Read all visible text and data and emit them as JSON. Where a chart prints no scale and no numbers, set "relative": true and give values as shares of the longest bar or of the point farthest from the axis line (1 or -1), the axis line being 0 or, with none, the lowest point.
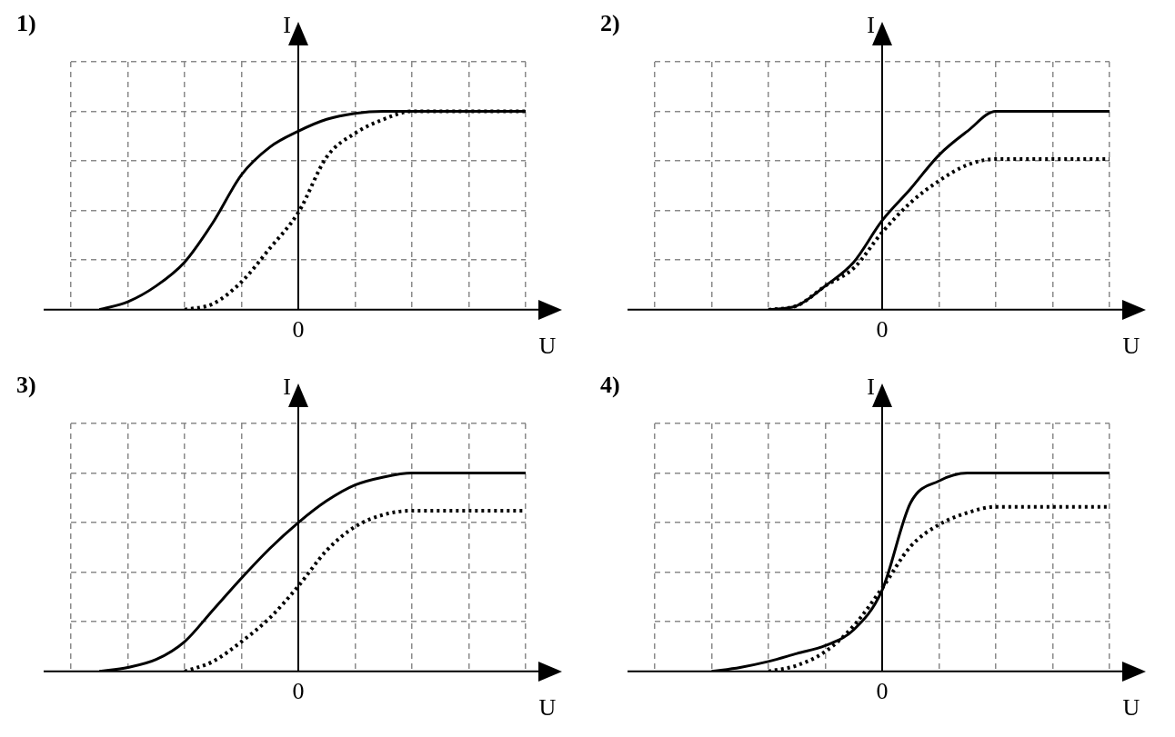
{
  "chart_data": [
    {
      "type": "line",
      "title": "1)",
      "xlabel": "U",
      "ylabel": "I",
      "relative": true,
      "grid": true,
      "legend": false,
      "marker": "none",
      "annotations": [
        "0"
      ],
      "categories": [
        null,
        null,
        null,
        null,
        null,
        null,
        null,
        null,
        null,
        null,
        null,
        null,
        null,
        null,
        null,
        null,
        null
      ],
      "series": [
        {
          "color": "#000000",
          "line_style": "solid",
          "values": [
            null,
            0,
            0.04,
            0.12,
            0.24,
            0.44,
            0.68,
            0.82,
            0.9,
            0.96,
            0.99,
            1,
            1,
            1,
            1,
            1,
            1
          ]
        },
        {
          "color": "#000000",
          "line_style": "dotted",
          "values": [
            null,
            null,
            null,
            null,
            0,
            0.03,
            0.14,
            0.31,
            0.49,
            0.77,
            0.89,
            0.96,
            1,
            1,
            1,
            1,
            1
          ]
        }
      ]
    },
    {
      "type": "line",
      "title": "2)",
      "xlabel": "U",
      "ylabel": "I",
      "relative": true,
      "grid": true,
      "legend": false,
      "marker": "none",
      "annotations": [
        "0"
      ],
      "categories": [
        null,
        null,
        null,
        null,
        null,
        null,
        null,
        null,
        null,
        null,
        null,
        null,
        null,
        null,
        null,
        null,
        null
      ],
      "series": [
        {
          "color": "#000000",
          "line_style": "solid",
          "values": [
            null,
            null,
            null,
            null,
            0,
            0.02,
            0.12,
            0.24,
            0.45,
            0.61,
            0.78,
            0.9,
            1,
            1,
            1,
            1,
            1
          ]
        },
        {
          "color": "#000000",
          "line_style": "dotted",
          "values": [
            null,
            null,
            null,
            null,
            0,
            0.02,
            0.12,
            0.21,
            0.39,
            0.54,
            0.65,
            0.73,
            0.76,
            0.76,
            0.76,
            0.76,
            0.76
          ]
        }
      ]
    },
    {
      "type": "line",
      "title": "3)",
      "xlabel": "U",
      "ylabel": "I",
      "relative": true,
      "grid": true,
      "legend": false,
      "marker": "none",
      "annotations": [
        "0"
      ],
      "categories": [
        null,
        null,
        null,
        null,
        null,
        null,
        null,
        null,
        null,
        null,
        null,
        null,
        null,
        null,
        null,
        null,
        null
      ],
      "series": [
        {
          "color": "#000000",
          "line_style": "solid",
          "values": [
            null,
            0,
            0.02,
            0.06,
            0.15,
            0.31,
            0.47,
            0.62,
            0.75,
            0.86,
            0.94,
            0.98,
            1,
            1,
            1,
            1,
            1
          ]
        },
        {
          "color": "#000000",
          "line_style": "dotted",
          "values": [
            null,
            null,
            null,
            null,
            0,
            0.05,
            0.15,
            0.27,
            0.43,
            0.61,
            0.73,
            0.79,
            0.81,
            0.81,
            0.81,
            0.81,
            0.81
          ]
        }
      ]
    },
    {
      "type": "line",
      "title": "4)",
      "xlabel": "U",
      "ylabel": "I",
      "relative": true,
      "grid": true,
      "legend": false,
      "marker": "none",
      "annotations": [
        "0"
      ],
      "categories": [
        null,
        null,
        null,
        null,
        null,
        null,
        null,
        null,
        null,
        null,
        null,
        null,
        null,
        null,
        null,
        null,
        null
      ],
      "series": [
        {
          "color": "#000000",
          "line_style": "solid",
          "values": [
            null,
            null,
            0,
            0.02,
            0.05,
            0.09,
            0.13,
            0.21,
            0.41,
            0.85,
            0.96,
            1,
            1,
            1,
            1,
            1,
            1
          ]
        },
        {
          "color": "#000000",
          "line_style": "dotted",
          "values": [
            null,
            null,
            null,
            null,
            0,
            0.03,
            0.1,
            0.23,
            0.42,
            0.63,
            0.74,
            0.8,
            0.83,
            0.83,
            0.83,
            0.83,
            0.83
          ]
        }
      ]
    }
  ]
}
